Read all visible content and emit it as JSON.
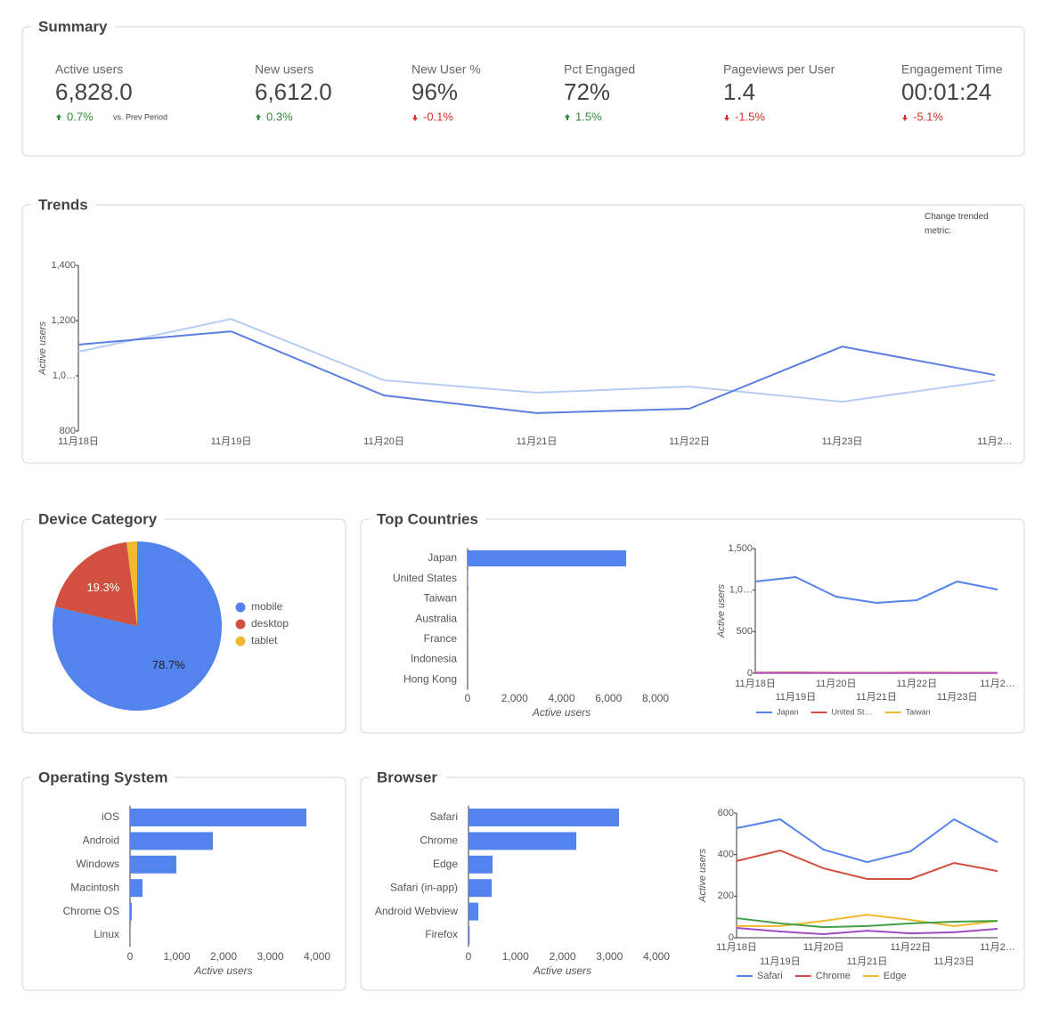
{
  "summary": {
    "title": "Summary",
    "compare_label": "vs. Prev Period",
    "metrics": [
      {
        "label": "Active users",
        "value": "6,828.0",
        "change": "0.7%",
        "direction": "up"
      },
      {
        "label": "New users",
        "value": "6,612.0",
        "change": "0.3%",
        "direction": "up"
      },
      {
        "label": "New User %",
        "value": "96%",
        "change": "-0.1%",
        "direction": "down"
      },
      {
        "label": "Pct Engaged",
        "value": "72%",
        "change": "1.5%",
        "direction": "up"
      },
      {
        "label": "Pageviews per User",
        "value": "1.4",
        "change": "-1.5%",
        "direction": "down"
      },
      {
        "label": "Engagement Time",
        "value": "00:01:24",
        "change": "-5.1%",
        "direction": "down"
      }
    ]
  },
  "chart_data": [
    {
      "type": "line",
      "title": "Trends",
      "control_label": "Change trended metric:",
      "categories": [
        "11月18日",
        "11月19日",
        "11月20日",
        "11月21日",
        "11月22日",
        "11月23日",
        "11月2…"
      ],
      "series": [
        {
          "color": "#b5cdf4",
          "values": [
            1087,
            1206,
            984,
            939,
            961,
            906,
            984
          ]
        },
        {
          "color": "#5b7fe0",
          "values": [
            1113,
            1161,
            929,
            865,
            881,
            1106,
            1003
          ]
        }
      ],
      "ylim": [
        800,
        1400
      ],
      "yticks": [
        800,
        {
          "value": 1000,
          "label": "1,0…"
        },
        {
          "value": 1200,
          "label": "1,200"
        },
        {
          "value": 1400,
          "label": "1,400"
        }
      ],
      "ylabel": "Active users"
    },
    {
      "type": "pie",
      "title": "Device Category",
      "categories": [
        "mobile",
        "desktop",
        "tablet"
      ],
      "values": [
        78.7,
        19.3,
        2.0
      ],
      "value_labels": [
        "78.7%",
        "19.3%",
        null
      ],
      "colors": [
        "#5383ec",
        "#d1503f",
        "#f0b92e"
      ]
    },
    {
      "type": "bar",
      "horizontal": true,
      "title": "Top Countries",
      "categories": [
        "Japan",
        "United States",
        "Taiwan",
        "Australia",
        "France",
        "Indonesia",
        "Hong Kong"
      ],
      "values": [
        6749,
        20,
        12,
        8,
        6,
        5,
        4
      ],
      "color": "#5383ec",
      "xlim": [
        0,
        8000
      ],
      "xticks": [
        0,
        {
          "value": 2000,
          "label": "2,000"
        },
        {
          "value": 4000,
          "label": "4,000"
        },
        {
          "value": 6000,
          "label": "6,000"
        },
        {
          "value": 8000,
          "label": "8,000"
        }
      ],
      "xlabel": "Active users"
    },
    {
      "type": "line",
      "categories": [
        "11月18日",
        "11月19日",
        "11月20日",
        "11月21日",
        "11月22日",
        "11月23日",
        "11月2…"
      ],
      "series": [
        {
          "name": "Japan",
          "color": "#5383ec",
          "values": [
            1104,
            1157,
            921,
            846,
            879,
            1104,
            1007
          ]
        },
        {
          "name": "United St…",
          "color": "#d1503f",
          "values": [
            8,
            9,
            7,
            6,
            8,
            7,
            6
          ]
        },
        {
          "name": "Taiwan",
          "color": "#f0b92e",
          "values": [
            5,
            5,
            4,
            4,
            5,
            4,
            4
          ]
        },
        {
          "color": "#b14ec4",
          "values": [
            3,
            3,
            3,
            3,
            3,
            3,
            3
          ]
        }
      ],
      "ylim": [
        0,
        1500
      ],
      "yticks": [
        0,
        500,
        {
          "value": 1000,
          "label": "1,0…"
        },
        {
          "value": 1500,
          "label": "1,500"
        }
      ],
      "ylabel": "Active users"
    },
    {
      "type": "bar",
      "horizontal": true,
      "title": "Operating System",
      "categories": [
        "iOS",
        "Android",
        "Windows",
        "Macintosh",
        "Chrome OS",
        "Linux"
      ],
      "values": [
        3771,
        1771,
        990,
        267,
        38,
        5
      ],
      "color": "#5383ec",
      "xlim": [
        0,
        4000
      ],
      "xticks": [
        0,
        {
          "value": 1000,
          "label": "1,000"
        },
        {
          "value": 2000,
          "label": "2,000"
        },
        {
          "value": 3000,
          "label": "3,000"
        },
        {
          "value": 4000,
          "label": "4,000"
        }
      ],
      "xlabel": "Active users"
    },
    {
      "type": "bar",
      "horizontal": true,
      "title": "Browser",
      "categories": [
        "Safari",
        "Chrome",
        "Edge",
        "Safari (in-app)",
        "Android Webview",
        "Firefox"
      ],
      "values": [
        3204,
        2294,
        512,
        493,
        209,
        25
      ],
      "color": "#5383ec",
      "xlim": [
        0,
        4000
      ],
      "xticks": [
        0,
        {
          "value": 1000,
          "label": "1,000"
        },
        {
          "value": 2000,
          "label": "2,000"
        },
        {
          "value": 3000,
          "label": "3,000"
        },
        {
          "value": 4000,
          "label": "4,000"
        }
      ],
      "xlabel": "Active users"
    },
    {
      "type": "line",
      "categories": [
        "11月18日",
        "11月19日",
        "11月20日",
        "11月21日",
        "11月22日",
        "11月23日",
        "11月2…"
      ],
      "series": [
        {
          "name": "Safari",
          "color": "#5383ec",
          "values": [
            527,
            570,
            424,
            364,
            416,
            570,
            459
          ]
        },
        {
          "name": "Chrome",
          "color": "#d1503f",
          "values": [
            369,
            420,
            334,
            283,
            283,
            360,
            321
          ]
        },
        {
          "name": "Edge",
          "color": "#f0b92e",
          "values": [
            56,
            56,
            81,
            111,
            86,
            56,
            81
          ]
        },
        {
          "color": "#43a047",
          "values": [
            94,
            69,
            51,
            56,
            69,
            77,
            81
          ]
        },
        {
          "color": "#a04cc0",
          "values": [
            47,
            30,
            17,
            34,
            21,
            26,
            43
          ]
        }
      ],
      "ylim": [
        0,
        600
      ],
      "yticks": [
        0,
        200,
        400,
        600
      ],
      "ylabel": "Active users"
    }
  ]
}
